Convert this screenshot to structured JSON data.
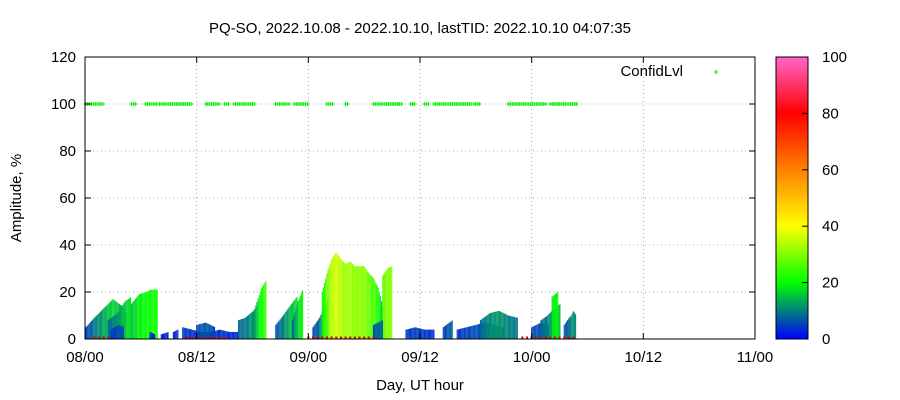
{
  "chart_data": {
    "type": "bar",
    "title": "PQ-SO, 2022.10.08 - 2022.10.10, lastTID: 2022.10.10 04:07:35",
    "xlabel": "Day, UT hour",
    "ylabel": "Amplitude, %",
    "xlim": [
      0,
      72
    ],
    "ylim": [
      0,
      120
    ],
    "x_ticks": [
      {
        "value": 0,
        "label": "08/00"
      },
      {
        "value": 12,
        "label": "08/12"
      },
      {
        "value": 24,
        "label": "09/00"
      },
      {
        "value": 36,
        "label": "09/12"
      },
      {
        "value": 48,
        "label": "10/00"
      },
      {
        "value": 60,
        "label": "10/12"
      },
      {
        "value": 72,
        "label": "11/00"
      }
    ],
    "y_ticks": [
      0,
      20,
      40,
      60,
      80,
      100,
      120
    ],
    "grid": true,
    "legend": {
      "position": "top-right",
      "entries": [
        {
          "name": "ConfidLvl",
          "color": "#00ff00"
        }
      ]
    },
    "colorbar": {
      "min": 0,
      "max": 100,
      "ticks": [
        0,
        20,
        40,
        60,
        80,
        100
      ],
      "colors": [
        "#0000ff",
        "#00ff00",
        "#ffff00",
        "#ff8000",
        "#ff0000",
        "#ff66cc"
      ]
    },
    "amplitude_segments": [
      {
        "x": [
          0.1,
          1.0,
          2.0,
          3.0,
          4.0,
          4.5
        ],
        "values": [
          5,
          9,
          13,
          17,
          14,
          11
        ]
      },
      {
        "x": [
          2.5,
          3.5,
          4.3,
          5.0
        ],
        "values": [
          8,
          11,
          16,
          18
        ]
      },
      {
        "x": [
          2.8,
          3.6,
          4.2
        ],
        "values": [
          4,
          6,
          5
        ]
      },
      {
        "x": [
          5.0,
          5.8,
          6.6,
          7.1,
          7.8
        ],
        "values": [
          15,
          19,
          20,
          21,
          21
        ]
      },
      {
        "x": [
          7.0,
          7.5
        ],
        "values": [
          3,
          2
        ]
      },
      {
        "x": [
          8.2,
          9.0
        ],
        "values": [
          2,
          3
        ]
      },
      {
        "x": [
          10.5,
          11.5,
          12.5,
          13.5,
          14.5,
          15.5,
          16.5
        ],
        "values": [
          5,
          4,
          3,
          3,
          4,
          3,
          3
        ]
      },
      {
        "x": [
          9.5,
          10.0
        ],
        "values": [
          3,
          4
        ]
      },
      {
        "x": [
          12.0,
          13.0,
          14.0
        ],
        "values": [
          6,
          7,
          5
        ]
      },
      {
        "x": [
          16.5,
          17.2,
          17.8,
          18.4
        ],
        "values": [
          8,
          9,
          11,
          13
        ]
      },
      {
        "x": [
          18.0,
          18.5,
          19.0,
          19.5
        ],
        "values": [
          10,
          16,
          22,
          25
        ]
      },
      {
        "x": [
          20.5,
          21.3,
          22.0,
          22.8
        ],
        "values": [
          6,
          10,
          14,
          18
        ]
      },
      {
        "x": [
          22.3,
          22.9,
          23.4
        ],
        "values": [
          8,
          16,
          21
        ]
      },
      {
        "x": [
          24.5,
          25.2,
          25.8,
          26.2
        ],
        "values": [
          5,
          9,
          14,
          17
        ]
      },
      {
        "x": [
          25.5,
          26.0,
          26.5,
          27.0,
          27.5,
          28.0,
          28.5,
          29.0,
          29.5,
          30.0,
          30.5,
          31.0,
          31.5,
          32.0
        ],
        "values": [
          20,
          28,
          34,
          37,
          34,
          32,
          33,
          31,
          31,
          31,
          28,
          26,
          22,
          14
        ]
      },
      {
        "x": [
          32.0,
          32.5,
          33.0
        ],
        "values": [
          27,
          30,
          31
        ]
      },
      {
        "x": [
          31.0,
          32.0
        ],
        "values": [
          6,
          8
        ]
      },
      {
        "x": [
          34.5,
          35.5,
          36.5,
          37.5
        ],
        "values": [
          4,
          5,
          4,
          4
        ]
      },
      {
        "x": [
          38.5,
          39.5
        ],
        "values": [
          5,
          8
        ]
      },
      {
        "x": [
          40.0,
          41.0,
          42.0,
          43.0,
          44.0,
          45.0
        ],
        "values": [
          4,
          5,
          6,
          7,
          6,
          5
        ]
      },
      {
        "x": [
          42.5,
          43.5,
          44.5,
          45.5,
          46.5
        ],
        "values": [
          8,
          11,
          12,
          10,
          9
        ]
      },
      {
        "x": [
          48.0,
          49.0,
          49.8
        ],
        "values": [
          5,
          7,
          6
        ]
      },
      {
        "x": [
          49.0,
          49.7,
          50.4,
          51.1
        ],
        "values": [
          8,
          10,
          13,
          15
        ]
      },
      {
        "x": [
          50.2,
          50.8
        ],
        "values": [
          18,
          20
        ]
      },
      {
        "x": [
          51.5,
          52.2
        ],
        "values": [
          6,
          10
        ]
      },
      {
        "x": [
          52.0,
          52.5,
          52.8
        ],
        "values": [
          8,
          12,
          10
        ]
      }
    ],
    "red_floor_ranges": [
      [
        1.0,
        2.5
      ],
      [
        11.0,
        15.0
      ],
      [
        24.0,
        31.0
      ],
      [
        47.0,
        52.5
      ]
    ],
    "confid_level_value": 100,
    "confid_level_ranges": [
      [
        0.1,
        2.0
      ],
      [
        5.0,
        5.4
      ],
      [
        6.5,
        7.8
      ],
      [
        8.0,
        9.0
      ],
      [
        9.2,
        11.5
      ],
      [
        13.0,
        14.5
      ],
      [
        15.0,
        15.5
      ],
      [
        16.0,
        18.2
      ],
      [
        20.5,
        22.0
      ],
      [
        22.5,
        24.0
      ],
      [
        26.0,
        26.6
      ],
      [
        28.0,
        28.2
      ],
      [
        31.0,
        34.0
      ],
      [
        35.0,
        35.5
      ],
      [
        36.5,
        37.0
      ],
      [
        37.5,
        41.5
      ],
      [
        41.8,
        42.5
      ],
      [
        45.5,
        49.5
      ],
      [
        50.0,
        52.8
      ]
    ]
  }
}
